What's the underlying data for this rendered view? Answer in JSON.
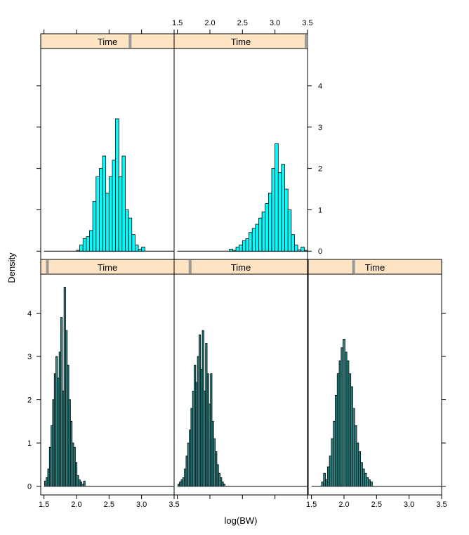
{
  "chart_data": {
    "type": "histogram-lattice",
    "xlabel": "log(BW)",
    "ylabel": "Density",
    "xlim": [
      1.45,
      3.5
    ],
    "ylim": [
      -0.2,
      4.9
    ],
    "x_ticks": [
      1.5,
      2.0,
      2.5,
      3.0,
      3.5
    ],
    "x_tick_labels": [
      "1.5",
      "2.0",
      "2.5",
      "3.0",
      "3.5"
    ],
    "y_ticks": [
      0,
      1,
      2,
      3,
      4
    ],
    "y_tick_labels": [
      "0",
      "1",
      "2",
      "3",
      "4"
    ],
    "colors": {
      "bar": "#00ffff",
      "dark_bar": "#2a8a8a",
      "strip": "#ffe4c4",
      "indicator": "#9a9a9a"
    },
    "panels": [
      {
        "strip": "Time",
        "indicator": 0.05,
        "width": 0.025,
        "bar_color": "#2a8a8a",
        "bins": [
          1.52,
          1.545,
          1.57,
          1.595,
          1.62,
          1.645,
          1.67,
          1.695,
          1.72,
          1.745,
          1.77,
          1.795,
          1.82,
          1.845,
          1.87,
          1.895,
          1.92,
          1.945,
          1.97,
          1.995,
          2.02,
          2.045,
          2.07,
          2.095,
          2.12
        ],
        "values": [
          0.12,
          0.2,
          0.4,
          0.9,
          1.4,
          2.0,
          2.6,
          3.0,
          2.5,
          3.1,
          3.9,
          2.2,
          4.6,
          3.6,
          2.8,
          2.0,
          1.5,
          1.0,
          0.9,
          0.55,
          0.25,
          0.15,
          0.1,
          0.05,
          0.12
        ]
      },
      {
        "strip": "Time",
        "indicator": 0.12,
        "width": 0.025,
        "bar_color": "#2a8a8a",
        "bins": [
          1.52,
          1.545,
          1.57,
          1.595,
          1.62,
          1.645,
          1.67,
          1.695,
          1.72,
          1.745,
          1.77,
          1.795,
          1.82,
          1.845,
          1.87,
          1.895,
          1.92,
          1.945,
          1.97,
          1.995,
          2.02,
          2.045,
          2.07,
          2.095,
          2.12,
          2.145,
          2.17,
          2.195,
          2.22
        ],
        "values": [
          0.05,
          0.1,
          0.15,
          0.2,
          0.4,
          0.7,
          1.0,
          1.3,
          1.8,
          2.2,
          2.8,
          2.4,
          3.0,
          3.5,
          2.7,
          3.6,
          2.2,
          3.3,
          2.6,
          1.9,
          2.6,
          1.5,
          1.1,
          0.8,
          0.5,
          0.3,
          0.2,
          0.1,
          0.05
        ]
      },
      {
        "strip": "Time",
        "indicator": 0.34,
        "width": 0.03,
        "bar_color": "#2a8a8a",
        "bins": [
          1.67,
          1.7,
          1.73,
          1.76,
          1.79,
          1.82,
          1.85,
          1.88,
          1.91,
          1.94,
          1.97,
          2.0,
          2.03,
          2.06,
          2.09,
          2.12,
          2.15,
          2.18,
          2.21,
          2.24,
          2.27,
          2.3,
          2.33,
          2.36,
          2.39,
          2.42
        ],
        "values": [
          0.1,
          0.3,
          0.15,
          0.45,
          0.7,
          1.1,
          1.5,
          2.1,
          2.6,
          2.9,
          3.2,
          3.4,
          3.1,
          2.9,
          2.6,
          2.3,
          1.8,
          1.4,
          1.0,
          0.8,
          0.55,
          0.4,
          0.3,
          0.2,
          0.15,
          0.1
        ]
      },
      {
        "strip": "Time",
        "indicator": 0.67,
        "width": 0.05,
        "bar_color": "#00ffff",
        "bins": [
          2.025,
          2.075,
          2.125,
          2.175,
          2.225,
          2.275,
          2.325,
          2.375,
          2.425,
          2.475,
          2.525,
          2.575,
          2.625,
          2.675,
          2.725,
          2.775,
          2.825,
          2.875,
          2.925,
          2.975,
          3.025
        ],
        "values": [
          0.02,
          0.15,
          0.3,
          0.35,
          0.5,
          1.2,
          1.8,
          2.0,
          2.3,
          1.4,
          1.8,
          2.2,
          3.2,
          1.8,
          2.3,
          1.0,
          0.8,
          0.4,
          0.15,
          0.05,
          0.1
        ]
      },
      {
        "strip": "Time",
        "indicator": 1.0,
        "width": 0.05,
        "bar_color": "#00ffff",
        "bins": [
          2.325,
          2.375,
          2.425,
          2.475,
          2.525,
          2.575,
          2.625,
          2.675,
          2.725,
          2.775,
          2.825,
          2.875,
          2.925,
          2.975,
          3.025,
          3.075,
          3.125,
          3.175,
          3.225,
          3.275,
          3.325,
          3.375,
          3.425,
          3.475
        ],
        "values": [
          0.05,
          0.02,
          0.1,
          0.15,
          0.25,
          0.3,
          0.45,
          0.55,
          0.65,
          0.8,
          0.95,
          1.15,
          1.4,
          2.0,
          2.6,
          1.9,
          2.1,
          1.5,
          1.0,
          0.4,
          0.15,
          0.03,
          0.1,
          0.02
        ]
      }
    ]
  }
}
